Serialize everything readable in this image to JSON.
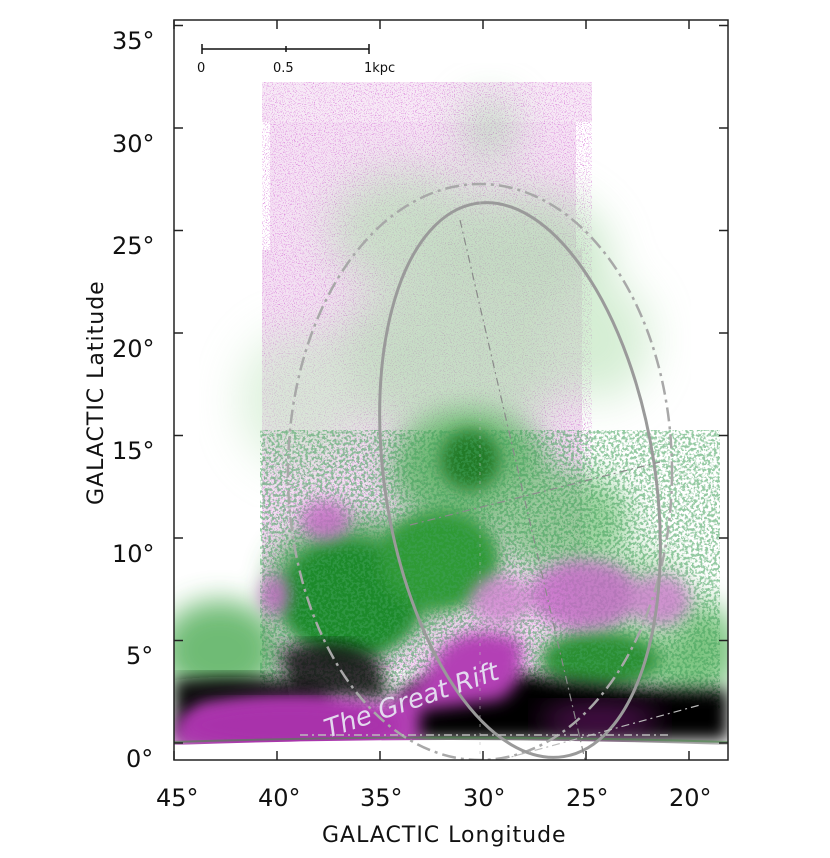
{
  "figure": {
    "xlabel": "GALACTIC Longitude",
    "ylabel": "GALACTIC Latitude",
    "x_ticks": [
      "45°",
      "40°",
      "35°",
      "30°",
      "25°",
      "20°"
    ],
    "y_ticks": [
      "35°",
      "30°",
      "25°",
      "20°",
      "15°",
      "10°",
      "5°",
      "0°"
    ],
    "scale_bar": {
      "labels": [
        "0",
        "0.5",
        "1kpc"
      ]
    },
    "annotation": "The Great Rift",
    "colors": {
      "green_emission": "#2e9e3c",
      "magenta_emission": "#b03ab5",
      "dark_lane": "#0a0a0a",
      "ellipse": "#999999"
    }
  },
  "chart_data": {
    "type": "image",
    "xlabel": "GALACTIC Longitude",
    "ylabel": "GALACTIC Latitude",
    "xlim": [
      45,
      18
    ],
    "ylim": [
      -1,
      36
    ],
    "x_ticks": [
      45,
      40,
      35,
      30,
      25,
      20
    ],
    "y_ticks": [
      35,
      30,
      25,
      20,
      15,
      10,
      5,
      0
    ],
    "annotation": "The Great Rift",
    "scale_bar_kpc": [
      0,
      0.5,
      1
    ]
  }
}
